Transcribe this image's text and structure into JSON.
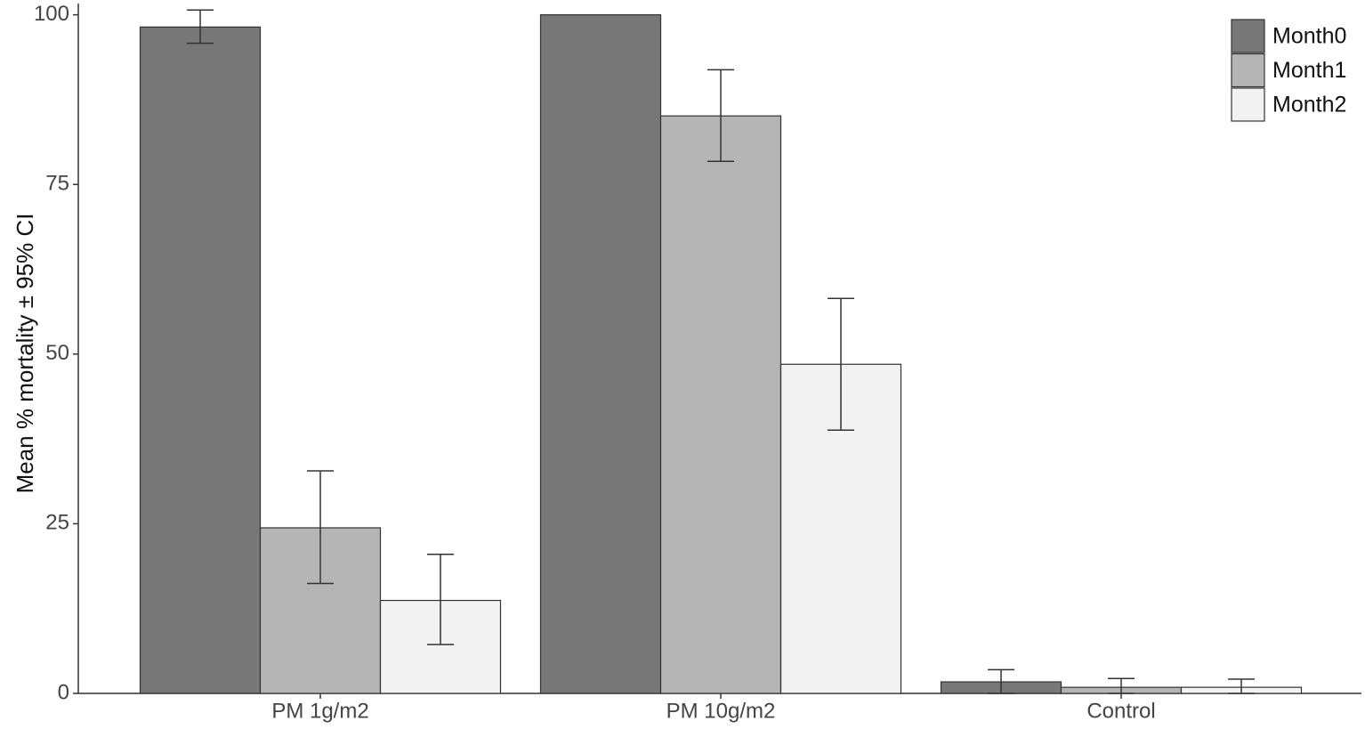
{
  "chart_data": {
    "type": "bar",
    "y_label": "Mean % mortality ± 95% CI",
    "categories": [
      "PM 1g/m2",
      "PM 10g/m2",
      "Control"
    ],
    "series": [
      {
        "name": "Month0",
        "color": "#777777",
        "values": [
          98.2,
          100,
          1.7
        ],
        "ci_low": [
          95.8,
          null,
          0
        ],
        "ci_high": [
          100.7,
          null,
          3.5
        ]
      },
      {
        "name": "Month1",
        "color": "#b5b5b5",
        "values": [
          24.4,
          85.1,
          0.9
        ],
        "ci_low": [
          16.2,
          78.4,
          0
        ],
        "ci_high": [
          32.8,
          91.9,
          2.2
        ]
      },
      {
        "name": "Month2",
        "color": "#f2f2f2",
        "values": [
          13.7,
          48.5,
          0.9
        ],
        "ci_low": [
          7.2,
          38.8,
          0
        ],
        "ci_high": [
          20.5,
          58.2,
          2.1
        ]
      }
    ],
    "ylim": [
      0,
      101
    ],
    "yticks": [
      0,
      25,
      50,
      75,
      100
    ],
    "legend": "top-right"
  }
}
